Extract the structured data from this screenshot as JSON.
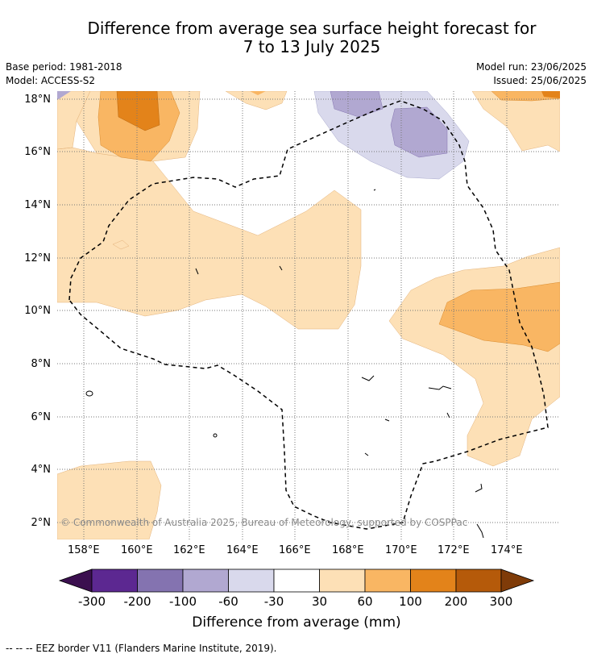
{
  "title": {
    "line1": "Difference from average sea surface height forecast for",
    "line2": "7 to 13 July 2025"
  },
  "meta": {
    "base_period": "Base period: 1981-2018",
    "model": "Model: ACCESS-S2",
    "model_run": "Model run: 23/06/2025",
    "issued": "Issued: 25/06/2025"
  },
  "map": {
    "lat_labels": [
      "18°N",
      "16°N",
      "14°N",
      "12°N",
      "10°N",
      "8°N",
      "6°N",
      "4°N",
      "2°N"
    ],
    "lon_labels": [
      "158°E",
      "160°E",
      "162°E",
      "164°E",
      "166°E",
      "168°E",
      "170°E",
      "172°E",
      "174°E"
    ],
    "copyright": "© Commonwealth of Australia 2025, Bureau of Meteorology, supported by COSPPac"
  },
  "colorbar": {
    "labels": [
      "-300",
      "-200",
      "-100",
      "-60",
      "-30",
      "30",
      "60",
      "100",
      "200",
      "300"
    ],
    "colors": [
      "#3b0f4f",
      "#5c2891",
      "#8473b0",
      "#b1a8d1",
      "#d9d9ec",
      "#ffffff",
      "#fde0b6",
      "#f9b663",
      "#e3831a",
      "#b55a0a",
      "#7f3b08"
    ],
    "title": "Difference from average (mm)"
  },
  "footer": {
    "legend": "--  --  -- EEZ border V11 (Flanders Marine Institute, 2019)."
  }
}
